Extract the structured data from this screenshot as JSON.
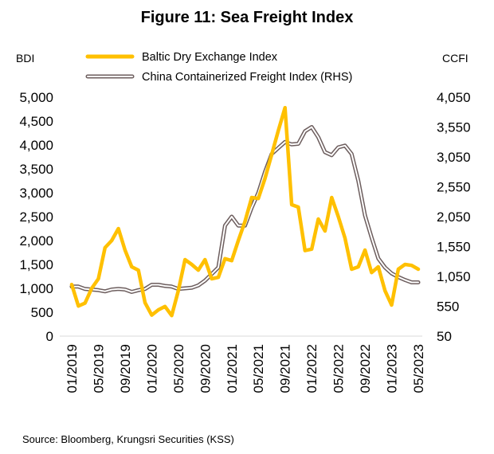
{
  "chart_data": {
    "type": "line",
    "title": "Figure 11: Sea Freight Index",
    "source": "Source: Bloomberg, Krungsri Securities (KSS)",
    "left_axis": {
      "label": "BDI",
      "ylim": [
        0,
        5000
      ],
      "tick_values": [
        0,
        500,
        1000,
        1500,
        2000,
        2500,
        3000,
        3500,
        4000,
        4500,
        5000
      ],
      "tick_labels": [
        "0",
        "500",
        "1,000",
        "1,500",
        "2,000",
        "2,500",
        "3,000",
        "3,500",
        "4,000",
        "4,500",
        "5,000"
      ]
    },
    "right_axis": {
      "label": "CCFI",
      "ylim": [
        50,
        4050
      ],
      "tick_values": [
        50,
        550,
        1050,
        1550,
        2050,
        2550,
        3050,
        3550,
        4050
      ],
      "tick_labels": [
        "50",
        "550",
        "1,050",
        "1,550",
        "2,050",
        "2,550",
        "3,050",
        "3,550",
        "4,050"
      ]
    },
    "x_tick_labels": [
      "01/2019",
      "05/2019",
      "09/2019",
      "01/2020",
      "05/2020",
      "09/2020",
      "01/2021",
      "05/2021",
      "09/2021",
      "01/2022",
      "05/2022",
      "09/2022",
      "01/2023",
      "05/2023"
    ],
    "x": [
      "01/2019",
      "02/2019",
      "03/2019",
      "04/2019",
      "05/2019",
      "06/2019",
      "07/2019",
      "08/2019",
      "09/2019",
      "10/2019",
      "11/2019",
      "12/2019",
      "01/2020",
      "02/2020",
      "03/2020",
      "04/2020",
      "05/2020",
      "06/2020",
      "07/2020",
      "08/2020",
      "09/2020",
      "10/2020",
      "11/2020",
      "12/2020",
      "01/2021",
      "02/2021",
      "03/2021",
      "04/2021",
      "05/2021",
      "06/2021",
      "07/2021",
      "08/2021",
      "09/2021",
      "10/2021",
      "11/2021",
      "12/2021",
      "01/2022",
      "02/2022",
      "03/2022",
      "04/2022",
      "05/2022",
      "06/2022",
      "07/2022",
      "08/2022",
      "09/2022",
      "10/2022",
      "11/2022",
      "12/2022",
      "01/2023",
      "02/2023",
      "03/2023",
      "04/2023",
      "05/2023"
    ],
    "series": [
      {
        "name": "Baltic Dry Exchange Index",
        "axis": "left",
        "color": "#FFC000",
        "values": [
          1080,
          630,
          690,
          1000,
          1200,
          1850,
          2000,
          2250,
          1800,
          1450,
          1380,
          700,
          440,
          550,
          620,
          430,
          950,
          1600,
          1500,
          1380,
          1600,
          1200,
          1230,
          1620,
          1580,
          2000,
          2400,
          2900,
          2880,
          3300,
          3800,
          4300,
          4780,
          2750,
          2700,
          1790,
          1820,
          2450,
          2200,
          2900,
          2500,
          2050,
          1400,
          1450,
          1800,
          1330,
          1450,
          950,
          650,
          1400,
          1500,
          1480,
          1400
        ]
      },
      {
        "name": "China Containerized Freight Index (RHS)",
        "axis": "right",
        "color": "#6D5E5E",
        "values": [
          880,
          880,
          840,
          830,
          820,
          800,
          830,
          840,
          830,
          790,
          820,
          840,
          910,
          910,
          890,
          880,
          840,
          850,
          860,
          900,
          980,
          1090,
          1200,
          1900,
          2050,
          1900,
          1900,
          2200,
          2450,
          2800,
          3100,
          3200,
          3300,
          3260,
          3270,
          3480,
          3550,
          3380,
          3130,
          3080,
          3210,
          3240,
          3100,
          2650,
          2070,
          1700,
          1350,
          1200,
          1100,
          1040,
          990,
          950,
          950
        ]
      }
    ],
    "legend_position": "top"
  }
}
